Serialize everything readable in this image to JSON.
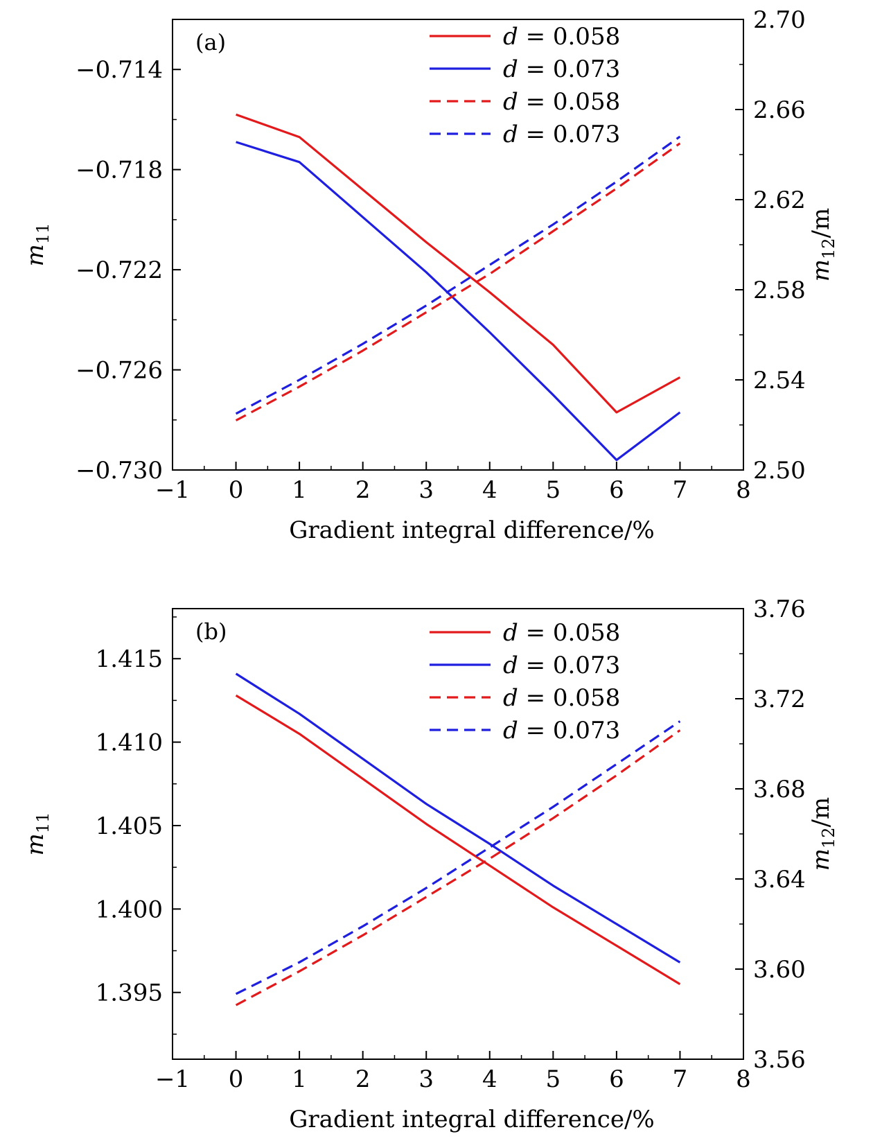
{
  "chart_data": [
    {
      "type": "line",
      "panel_label": "(a)",
      "xlabel": "Gradient integral difference/%",
      "ylabel_left": "m11",
      "ylabel_right": "m12/m",
      "xlim": [
        -1,
        8
      ],
      "xticks": [
        "−1",
        "0",
        "1",
        "2",
        "3",
        "4",
        "5",
        "6",
        "7",
        "8"
      ],
      "ylim_left": [
        -0.73,
        -0.712
      ],
      "yticks_left": [
        -0.714,
        -0.718,
        -0.722,
        -0.726,
        -0.73
      ],
      "yticklabels_left": [
        "−0.714",
        "−0.718",
        "−0.722",
        "−0.726",
        "−0.730"
      ],
      "ylim_right": [
        2.5,
        2.7
      ],
      "yticks_right": [
        2.7,
        2.66,
        2.62,
        2.58,
        2.54,
        2.5
      ],
      "yticklabels_right": [
        "2.70",
        "2.66",
        "2.62",
        "2.58",
        "2.54",
        "2.50"
      ],
      "legend_position": "top-right",
      "x": [
        0,
        1,
        2,
        3,
        4,
        5,
        6,
        7
      ],
      "series": [
        {
          "name": "d = 0.058",
          "axis": "left",
          "style": "solid",
          "color": "#e31a1c",
          "values": [
            -0.7158,
            -0.7167,
            -0.7188,
            -0.7209,
            -0.7229,
            -0.725,
            -0.7277,
            -0.7263
          ]
        },
        {
          "name": "d = 0.073",
          "axis": "left",
          "style": "solid",
          "color": "#1f1fe0",
          "values": [
            -0.7169,
            -0.7177,
            -0.7199,
            -0.7221,
            -0.7245,
            -0.727,
            -0.7296,
            -0.7277
          ]
        },
        {
          "name": "d = 0.058",
          "axis": "right",
          "style": "dashed",
          "color": "#e31a1c",
          "values": [
            2.522,
            2.537,
            2.553,
            2.57,
            2.587,
            2.606,
            2.625,
            2.645
          ]
        },
        {
          "name": "d = 0.073",
          "axis": "right",
          "style": "dashed",
          "color": "#1f1fe0",
          "values": [
            2.525,
            2.54,
            2.556,
            2.573,
            2.591,
            2.609,
            2.628,
            2.648
          ]
        }
      ]
    },
    {
      "type": "line",
      "panel_label": "(b)",
      "xlabel": "Gradient integral difference/%",
      "ylabel_left": "m11",
      "ylabel_right": "m12/m",
      "xlim": [
        -1,
        8
      ],
      "xticks": [
        "−1",
        "0",
        "1",
        "2",
        "3",
        "4",
        "5",
        "6",
        "7",
        "8"
      ],
      "ylim_left": [
        1.391,
        1.418
      ],
      "yticks_left": [
        1.415,
        1.41,
        1.405,
        1.4,
        1.395
      ],
      "yticklabels_left": [
        "1.415",
        "1.410",
        "1.405",
        "1.400",
        "1.395"
      ],
      "ylim_right": [
        3.56,
        3.76
      ],
      "yticks_right": [
        3.76,
        3.72,
        3.68,
        3.64,
        3.6,
        3.56
      ],
      "yticklabels_right": [
        "3.76",
        "3.72",
        "3.68",
        "3.64",
        "3.60",
        "3.56"
      ],
      "legend_position": "top-right",
      "x": [
        0,
        1,
        2,
        3,
        4,
        5,
        6,
        7
      ],
      "series": [
        {
          "name": "d = 0.058",
          "axis": "left",
          "style": "solid",
          "color": "#e31a1c",
          "values": [
            1.4128,
            1.4105,
            1.4078,
            1.4051,
            1.4026,
            1.4001,
            1.3978,
            1.3955
          ]
        },
        {
          "name": "d = 0.073",
          "axis": "left",
          "style": "solid",
          "color": "#1f1fe0",
          "values": [
            1.4141,
            1.4117,
            1.409,
            1.4063,
            1.4039,
            1.4014,
            1.3991,
            1.3968
          ]
        },
        {
          "name": "d = 0.058",
          "axis": "right",
          "style": "dashed",
          "color": "#e31a1c",
          "values": [
            3.584,
            3.599,
            3.615,
            3.632,
            3.649,
            3.667,
            3.686,
            3.706
          ]
        },
        {
          "name": "d = 0.073",
          "axis": "right",
          "style": "dashed",
          "color": "#1f1fe0",
          "values": [
            3.589,
            3.603,
            3.619,
            3.636,
            3.654,
            3.672,
            3.691,
            3.71
          ]
        }
      ]
    }
  ]
}
